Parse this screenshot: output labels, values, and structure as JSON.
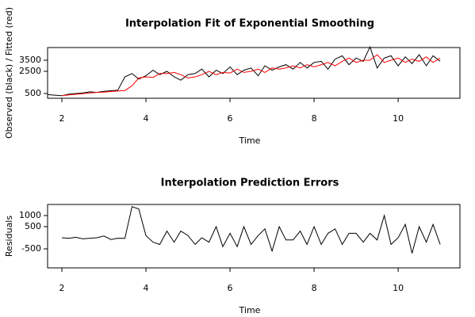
{
  "chart_data": [
    {
      "type": "line",
      "title": "Interpolation Fit of Exponential Smoothing",
      "xlabel": "Time",
      "ylabel": "Observed (black) / Fitted (red)",
      "x": [
        1.67,
        1.83,
        2.0,
        2.17,
        2.33,
        2.5,
        2.67,
        2.83,
        3.0,
        3.17,
        3.33,
        3.5,
        3.67,
        3.83,
        4.0,
        4.17,
        4.33,
        4.5,
        4.67,
        4.83,
        5.0,
        5.17,
        5.33,
        5.5,
        5.67,
        5.83,
        6.0,
        6.17,
        6.33,
        6.5,
        6.67,
        6.83,
        7.0,
        7.17,
        7.33,
        7.5,
        7.67,
        7.83,
        8.0,
        8.17,
        8.33,
        8.5,
        8.67,
        8.83,
        9.0,
        9.17,
        9.33,
        9.5,
        9.67,
        9.83,
        10.0,
        10.17,
        10.33,
        10.5,
        10.67,
        10.83,
        11.0
      ],
      "series": [
        {
          "name": "Observed",
          "color": "#000000",
          "values": [
            400,
            350,
            300,
            450,
            500,
            550,
            650,
            600,
            700,
            750,
            800,
            2000,
            2300,
            1800,
            2100,
            2600,
            2200,
            2500,
            2000,
            1700,
            2200,
            2300,
            2700,
            2000,
            2600,
            2300,
            2900,
            2200,
            2600,
            2800,
            2100,
            3000,
            2600,
            2900,
            3100,
            2700,
            3300,
            2800,
            3300,
            3400,
            2700,
            3600,
            3900,
            3100,
            3700,
            3400,
            4700,
            2800,
            3700,
            3900,
            3000,
            3800,
            3200,
            4000,
            3000,
            3900,
            3400
          ]
        },
        {
          "name": "Fitted",
          "color": "#ff0000",
          "values": [
            null,
            null,
            300,
            380,
            430,
            480,
            550,
            600,
            620,
            680,
            720,
            770,
            1200,
            1900,
            2000,
            1950,
            2300,
            2300,
            2400,
            2200,
            1900,
            2000,
            2200,
            2500,
            2200,
            2400,
            2350,
            2700,
            2400,
            2500,
            2700,
            2400,
            2800,
            2700,
            2800,
            3000,
            2800,
            3100,
            2900,
            3100,
            3300,
            3000,
            3400,
            3700,
            3300,
            3500,
            3500,
            4000,
            3300,
            3500,
            3700,
            3300,
            3600,
            3400,
            3800,
            3300,
            3700
          ]
        }
      ],
      "xlim": [
        1.66,
        11.47
      ],
      "ylim": [
        70,
        4640
      ],
      "xticks": [
        2,
        4,
        6,
        8,
        10
      ],
      "yticks": [
        500,
        2500,
        3500
      ]
    },
    {
      "type": "line",
      "title": "Interpolation Prediction Errors",
      "xlabel": "Time",
      "ylabel": "Residuals",
      "x": [
        2.0,
        2.17,
        2.33,
        2.5,
        2.67,
        2.83,
        3.0,
        3.17,
        3.33,
        3.5,
        3.67,
        3.83,
        4.0,
        4.17,
        4.33,
        4.5,
        4.67,
        4.83,
        5.0,
        5.17,
        5.33,
        5.5,
        5.67,
        5.83,
        6.0,
        6.17,
        6.33,
        6.5,
        6.67,
        6.83,
        7.0,
        7.17,
        7.33,
        7.5,
        7.67,
        7.83,
        8.0,
        8.17,
        8.33,
        8.5,
        8.67,
        8.83,
        9.0,
        9.17,
        9.33,
        9.5,
        9.67,
        9.83,
        10.0,
        10.17,
        10.33,
        10.5,
        10.67,
        10.83,
        11.0
      ],
      "series": [
        {
          "name": "Residuals",
          "color": "#000000",
          "values": [
            0,
            -30,
            20,
            -50,
            -20,
            0,
            80,
            -80,
            -20,
            -30,
            1400,
            1300,
            100,
            -200,
            -300,
            300,
            -200,
            300,
            100,
            -300,
            0,
            -200,
            500,
            -400,
            200,
            -400,
            500,
            -300,
            100,
            400,
            -600,
            500,
            -100,
            -100,
            300,
            -300,
            500,
            -300,
            200,
            400,
            -300,
            200,
            200,
            -200,
            200,
            -100,
            1000,
            -300,
            0,
            600,
            -700,
            500,
            -200,
            600,
            -300
          ]
        }
      ],
      "xlim": [
        1.66,
        11.47
      ],
      "ylim": [
        -1357,
        1500
      ],
      "xticks": [
        2,
        4,
        6,
        8,
        10
      ],
      "yticks": [
        1000,
        500,
        -500
      ]
    }
  ]
}
